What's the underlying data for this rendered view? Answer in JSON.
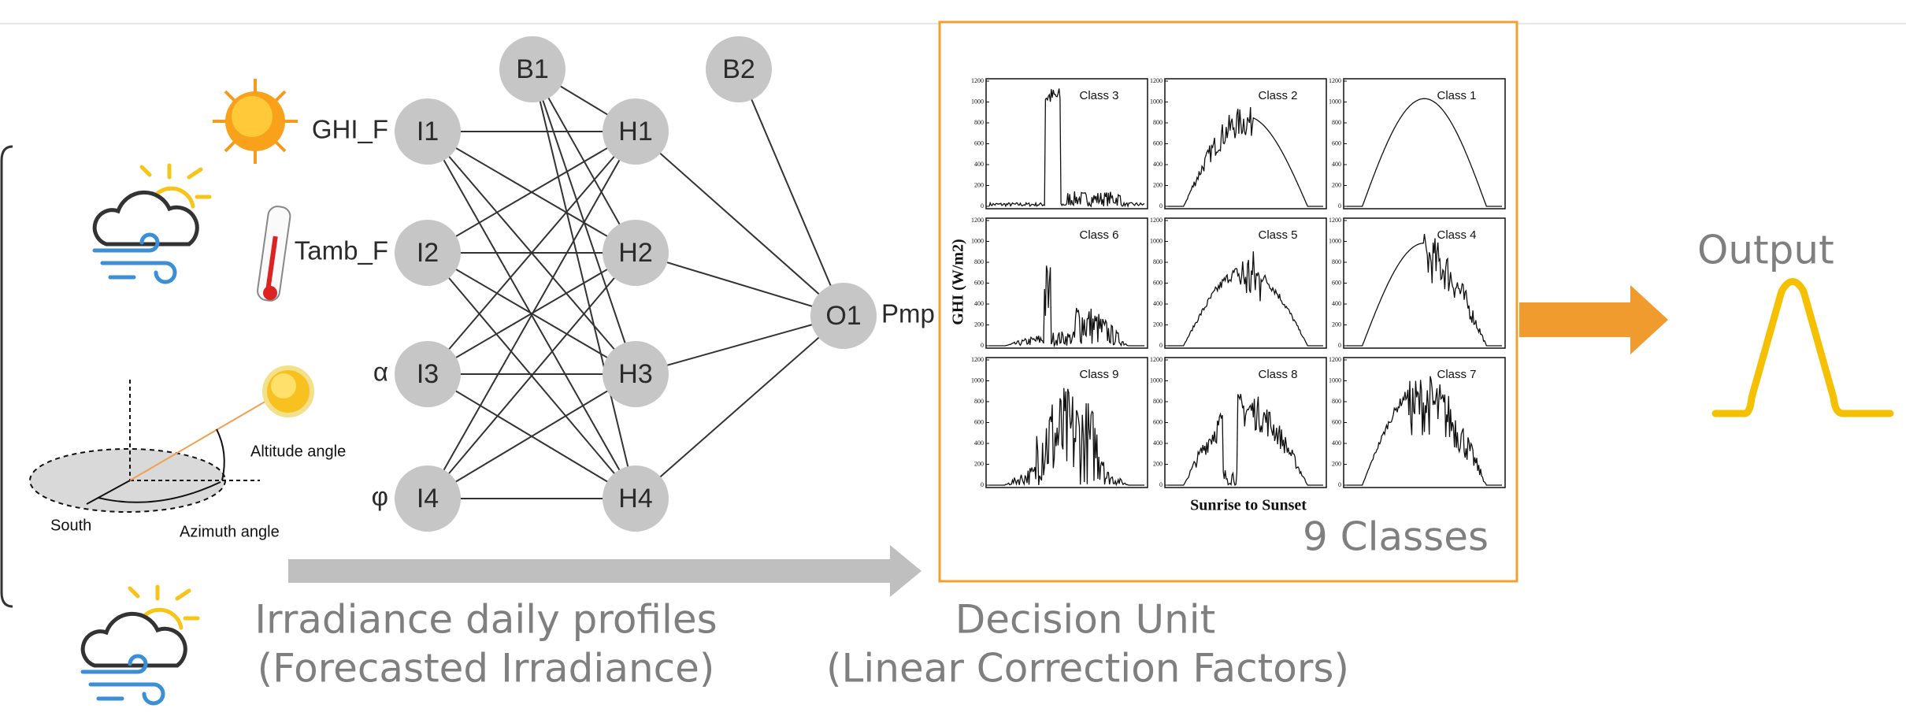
{
  "network": {
    "inputs": [
      {
        "name": "GHI_F",
        "node": "I1"
      },
      {
        "name": "Tamb_F",
        "node": "I2"
      },
      {
        "name": "α",
        "node": "I3"
      },
      {
        "name": "φ",
        "node": "I4"
      }
    ],
    "hidden": [
      "H1",
      "H2",
      "H3",
      "H4"
    ],
    "biases": [
      "B1",
      "B2"
    ],
    "output": {
      "node": "O1",
      "name": "Pmp"
    }
  },
  "geometry": {
    "altitude": "Altitude angle",
    "south": "South",
    "azimuth": "Azimuth angle"
  },
  "classes": {
    "panels": [
      "Class 3",
      "Class 2",
      "Class 1",
      "Class 6",
      "Class 5",
      "Class 4",
      "Class 9",
      "Class 8",
      "Class 7"
    ],
    "ticks": [
      "0",
      "200",
      "400",
      "600",
      "800",
      "1000",
      "1200"
    ],
    "y_axis_label": "GHI (W/m2)",
    "x_axis_label": "Sunrise to Sunset",
    "count_label": "9 Classes"
  },
  "captions": {
    "irradiance": [
      "Irradiance daily profiles",
      "(Forecasted Irradiance)"
    ],
    "decision": [
      "Decision Unit",
      "(Linear Correction Factors)"
    ],
    "output": "Output"
  }
}
